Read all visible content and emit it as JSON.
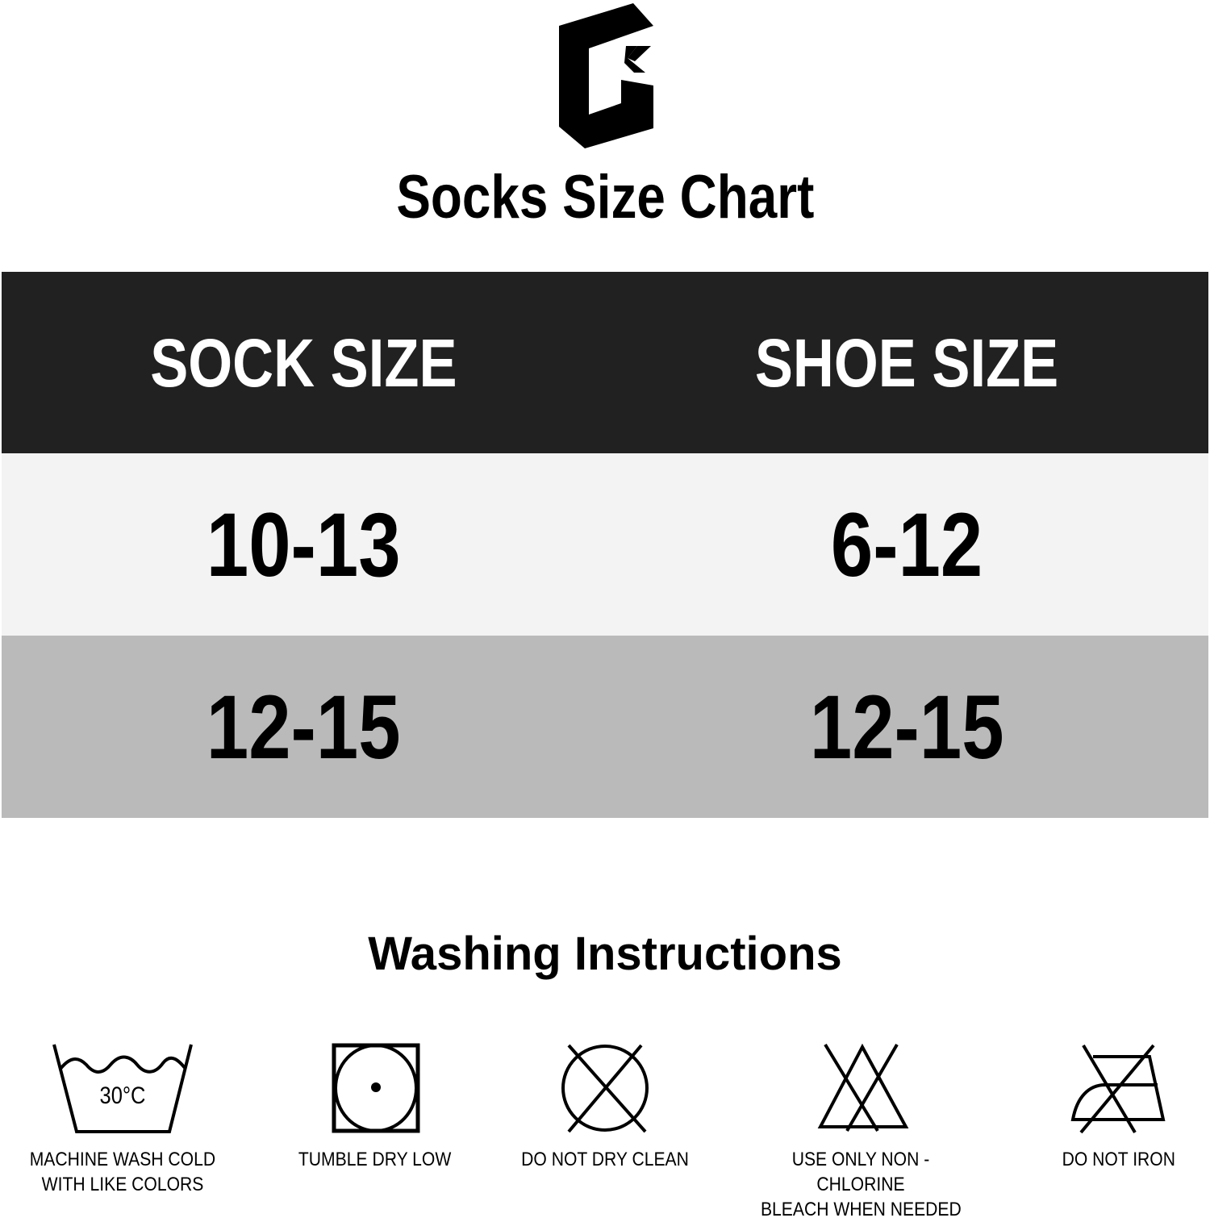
{
  "logo": {
    "text": "GK",
    "icon": "gk-logo"
  },
  "title": "Socks Size Chart",
  "size_table": {
    "headers": [
      "SOCK SIZE",
      "SHOE SIZE"
    ],
    "rows": [
      {
        "sock": "10-13",
        "shoe": "6-12"
      },
      {
        "sock": "12-15",
        "shoe": "12-15"
      }
    ],
    "colors": {
      "header": "#212121",
      "row1": "#f3f3f3",
      "row2": "#bababa"
    }
  },
  "washing": {
    "title": "Washing Instructions",
    "items": [
      {
        "icon": "wash-tub-icon",
        "temp": "30°C",
        "label_lines": [
          "MACHINE WASH COLD",
          "WITH LIKE COLORS"
        ]
      },
      {
        "icon": "tumble-dry-low-icon",
        "label_lines": [
          "TUMBLE DRY LOW"
        ]
      },
      {
        "icon": "no-dry-clean-icon",
        "label_lines": [
          "DO NOT DRY CLEAN"
        ]
      },
      {
        "icon": "no-chlorine-bleach-icon",
        "label_lines": [
          "USE ONLY NON - CHLORINE",
          "BLEACH WHEN NEEDED"
        ]
      },
      {
        "icon": "no-iron-icon",
        "label_lines": [
          "DO NOT IRON"
        ]
      }
    ]
  }
}
